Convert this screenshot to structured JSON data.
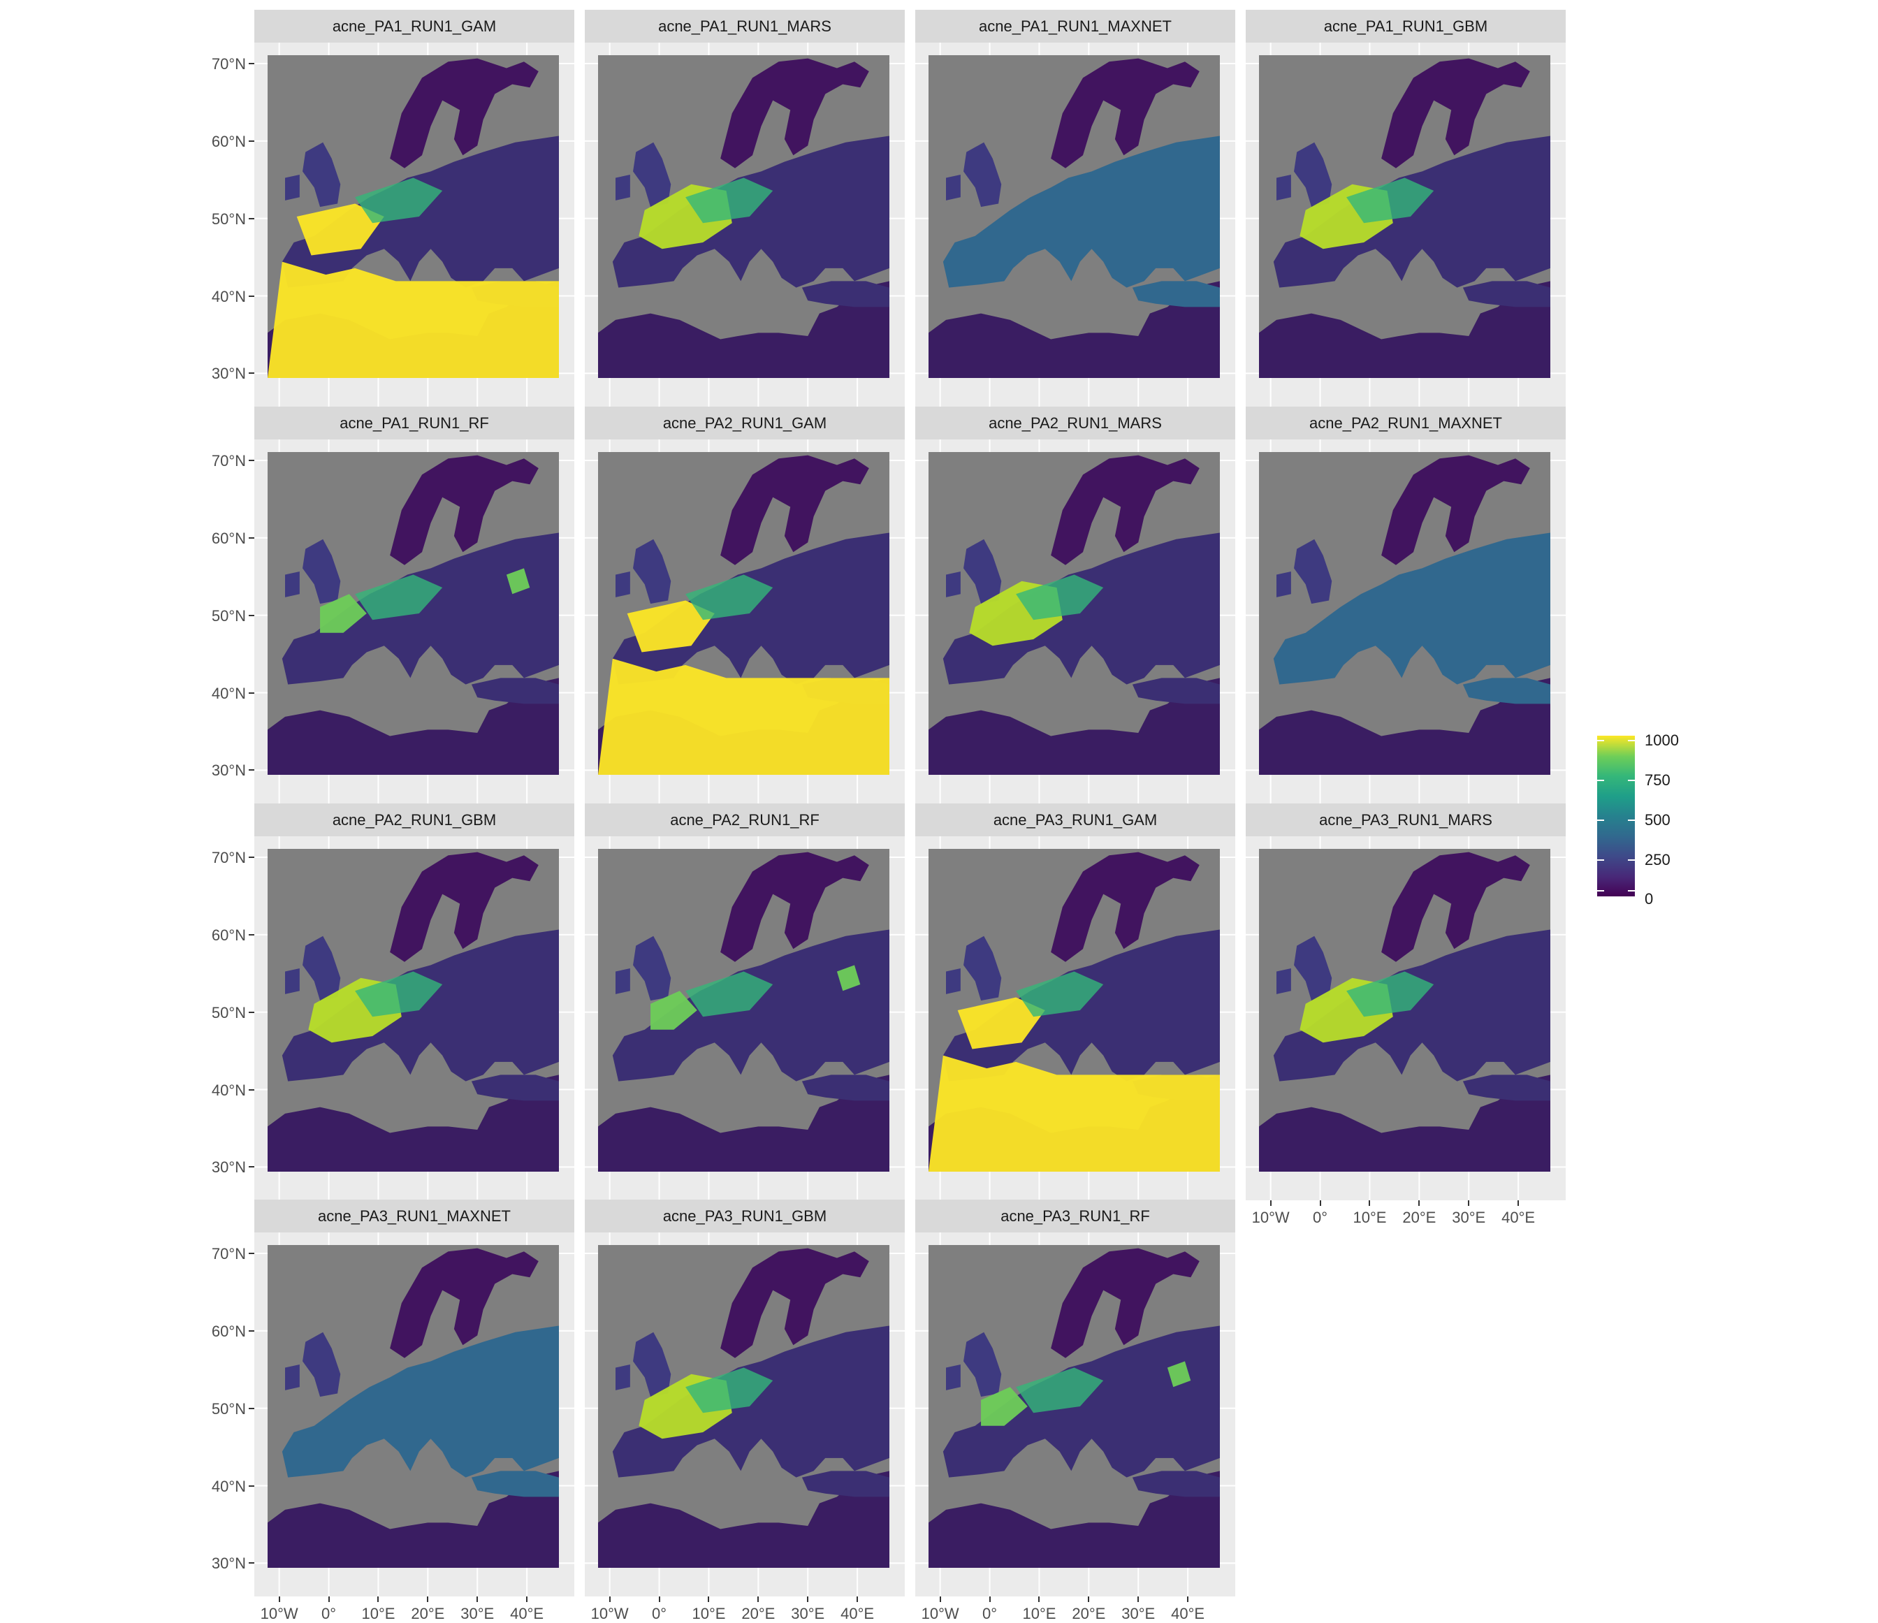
{
  "panels": [
    {
      "title": "acne_PA1_RUN1_GAM",
      "hot": "south"
    },
    {
      "title": "acne_PA1_RUN1_MARS",
      "hot": "west"
    },
    {
      "title": "acne_PA1_RUN1_MAXNET",
      "hot": "flat"
    },
    {
      "title": "acne_PA1_RUN1_GBM",
      "hot": "west"
    },
    {
      "title": "acne_PA1_RUN1_RF",
      "hot": "speckle"
    },
    {
      "title": "acne_PA2_RUN1_GAM",
      "hot": "south"
    },
    {
      "title": "acne_PA2_RUN1_MARS",
      "hot": "west"
    },
    {
      "title": "acne_PA2_RUN1_MAXNET",
      "hot": "flat"
    },
    {
      "title": "acne_PA2_RUN1_GBM",
      "hot": "west"
    },
    {
      "title": "acne_PA2_RUN1_RF",
      "hot": "speckle"
    },
    {
      "title": "acne_PA3_RUN1_GAM",
      "hot": "south"
    },
    {
      "title": "acne_PA3_RUN1_MARS",
      "hot": "west"
    },
    {
      "title": "acne_PA3_RUN1_MAXNET",
      "hot": "flat"
    },
    {
      "title": "acne_PA3_RUN1_GBM",
      "hot": "west"
    },
    {
      "title": "acne_PA3_RUN1_RF",
      "hot": "speckle"
    }
  ],
  "y_axis_labels": [
    "70°N",
    "60°N",
    "50°N",
    "40°N",
    "30°N"
  ],
  "x_axis_labels": [
    "10°W",
    "0°",
    "10°E",
    "20°E",
    "30°E",
    "40°E"
  ],
  "legend": {
    "labels": [
      "1000",
      "750",
      "500",
      "250",
      "0"
    ],
    "range": [
      0,
      1000
    ],
    "palette": "viridis",
    "colors": {
      "low": "#440154",
      "high": "#fde725"
    }
  },
  "colors": {
    "sea": "#7f7f7f",
    "panel_bg": "#ebebeb",
    "strip_bg": "#d9d9d9"
  }
}
